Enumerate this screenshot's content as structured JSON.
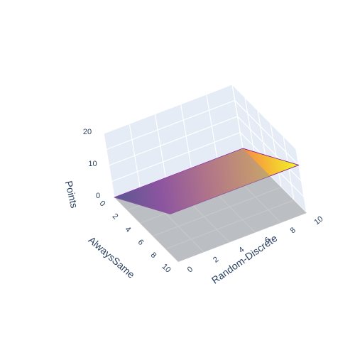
{
  "chart_data": {
    "type": "surface3d",
    "axes": {
      "x": {
        "title": "AlwaysSame",
        "range": [
          0,
          10
        ],
        "ticks": [
          0,
          2,
          4,
          6,
          8,
          10
        ]
      },
      "y": {
        "title": "Random-Discrete",
        "range": [
          0,
          10
        ],
        "ticks": [
          0,
          2,
          4,
          6,
          8,
          10
        ]
      },
      "z": {
        "title": "Points",
        "range": [
          0,
          20
        ],
        "ticks": [
          0,
          10,
          20
        ]
      }
    },
    "surfaces": [
      {
        "style": "thin colored sheet",
        "colors": [
          "#0d0887",
          "#7e03a8",
          "#cc4778",
          "#f89540",
          "#f0f921"
        ],
        "corners": [
          {
            "x": 0,
            "y": 0,
            "z": 0
          },
          {
            "x": 0,
            "y": 10,
            "z": 0
          },
          {
            "x": 10,
            "y": 0,
            "z": 15
          },
          {
            "x": 10,
            "y": 10,
            "z": 15
          }
        ]
      },
      {
        "style": "flat gray plane",
        "color": "#999999",
        "level": 0
      }
    ],
    "background_color": "#e5ecf6",
    "grid": true
  }
}
